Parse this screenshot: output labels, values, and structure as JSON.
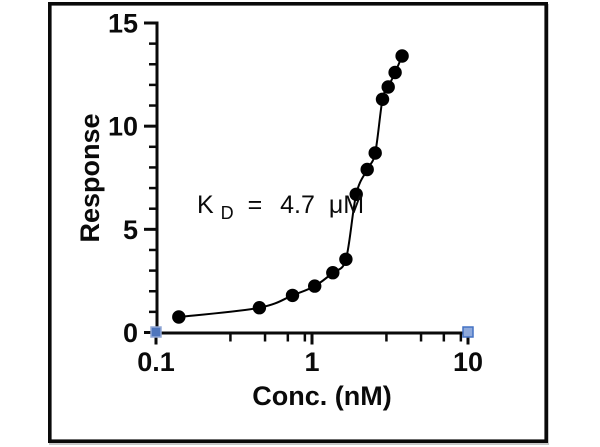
{
  "chart_data": {
    "type": "scatter",
    "title": "",
    "xlabel": "Conc. (nM)",
    "ylabel": "Response",
    "x_scale": "log",
    "xlim": [
      0.1,
      10
    ],
    "ylim": [
      0,
      15
    ],
    "grid": false,
    "legend": false,
    "x_major_ticks": [
      0.1,
      1,
      10
    ],
    "x_major_tick_labels": [
      "0.1",
      "1",
      "10"
    ],
    "x_minor_ticks": [
      0.3,
      0.5,
      0.7,
      0.9,
      3,
      5,
      7,
      9
    ],
    "y_major_ticks": [
      0,
      5,
      10,
      15
    ],
    "y_major_tick_labels": [
      "0",
      "5",
      "10",
      "15"
    ],
    "y_minor_tick_step": 1,
    "series": [
      {
        "name": "binding-response-data",
        "marker": "circle",
        "color": "#000000",
        "points": [
          [
            0.14,
            0.75
          ],
          [
            0.46,
            1.2
          ],
          [
            0.75,
            1.8
          ],
          [
            1.04,
            2.25
          ],
          [
            1.36,
            2.9
          ],
          [
            1.65,
            3.55
          ],
          [
            1.92,
            6.7
          ],
          [
            2.26,
            7.9
          ],
          [
            2.54,
            8.7
          ],
          [
            2.83,
            11.3
          ],
          [
            3.08,
            11.9
          ],
          [
            3.41,
            12.6
          ],
          [
            3.78,
            13.4
          ]
        ]
      }
    ],
    "fit_line": {
      "name": "fitted-binding-curve",
      "color": "#000000",
      "through_points": true
    },
    "axis_endpoint_markers": [
      {
        "x": 0.1,
        "y": 0,
        "fill": "#4f76bd",
        "stroke": "#93a9d6"
      },
      {
        "x": 10,
        "y": 0,
        "fill": "#8faadc",
        "stroke": "#4472c4"
      }
    ],
    "annotation": {
      "k": "K",
      "sub": "D",
      "eq": "=",
      "value": "4.7",
      "unit": "μM"
    }
  },
  "colors": {
    "axis": "#0a0a0a",
    "curve": "#0a0a0a",
    "point": "#0a0a0a",
    "frame": "#0a0a0a",
    "background": "#ffffff"
  }
}
